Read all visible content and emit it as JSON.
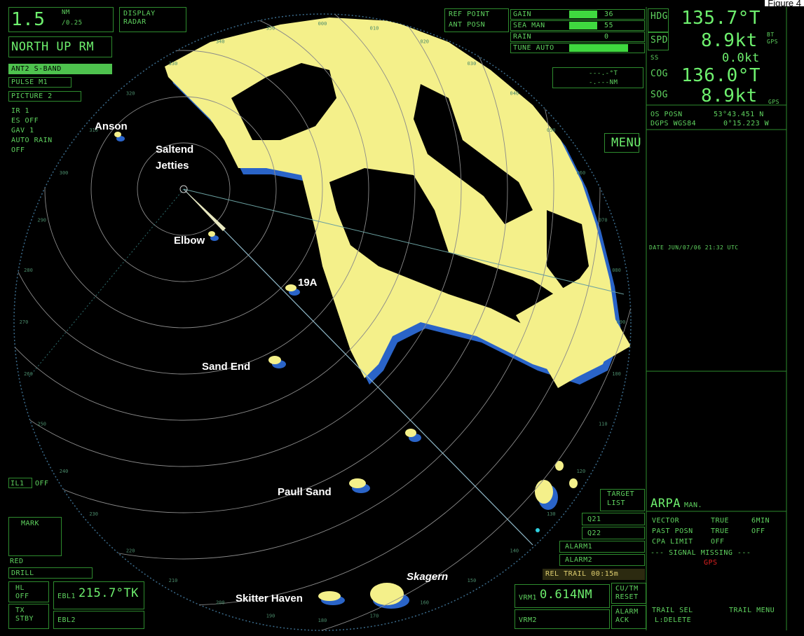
{
  "figure_label": "Figure 4",
  "display": {
    "range": "1.5",
    "range_unit": "NM",
    "ring_interval": "/0.25",
    "mode_line1": "DISPLAY",
    "mode_line2": "RADAR",
    "orientation": "NORTH UP RM",
    "antenna": "ANT2 S-BAND",
    "pulse": "PULSE M1",
    "picture": "PICTURE 2",
    "settings": [
      "IR 1",
      "ES OFF",
      "GAV 1",
      "AUTO RAIN",
      "OFF"
    ]
  },
  "bottom_left": {
    "il": "IL1",
    "il_state": "OFF",
    "mark": "MARK",
    "mark_color": "RED",
    "drill": "DRILL",
    "hl": "HL",
    "hl_state": "OFF",
    "tx": "TX",
    "tx_state": "STBY",
    "ebl1": "EBL1",
    "ebl1_value": "215.7°TK",
    "ebl2": "EBL2"
  },
  "ref_point": {
    "line1": "REF POINT",
    "line2": "ANT POSN"
  },
  "controls": [
    {
      "label": "GAIN",
      "value": 36
    },
    {
      "label": "SEA MAN",
      "value": 55
    },
    {
      "label": "RAIN",
      "value": 0
    },
    {
      "label": "TUNE AUTO"
    }
  ],
  "cursor": {
    "bearing": "---.-°T",
    "range": "-.---NM"
  },
  "nav": {
    "hdg_label": "HDG",
    "hdg": "135.7°T",
    "spd_label": "SPD",
    "spd": "8.9kt",
    "spd_mode": "BT",
    "spd_source": "GPS",
    "ss_label": "SS",
    "ss": "0.0kt",
    "cog_label": "COG",
    "cog": "136.0°T",
    "sog_label": "SOG",
    "sog": "8.9kt",
    "sog_source": "GPS",
    "posn_label": "OS POSN",
    "lat": "53°43.451 N",
    "datum": "DGPS WGS84",
    "lon": "0°15.223 W",
    "menu": "MENU",
    "date": "DATE JUN/07/06 21:32 UTC"
  },
  "targets": {
    "list_line1": "TARGET",
    "list_line2": "LIST",
    "arpa": "ARPA",
    "arpa_mode": "MAN.",
    "rows": [
      [
        "VECTOR",
        "TRUE",
        "6MIN"
      ],
      [
        "PAST POSN",
        "TRUE",
        "OFF"
      ],
      [
        "CPA LIMIT",
        "OFF"
      ]
    ],
    "signal_missing": "--- SIGNAL MISSING ---",
    "signal_source": "GPS",
    "q21": "Q21",
    "q22": "Q22",
    "alarm1": "ALARM1",
    "alarm2": "ALARM2",
    "trail": "REL TRAIL 00:15m",
    "vrm1": "VRM1",
    "vrm1_value": "0.614NM",
    "vrm2": "VRM2",
    "cutm_line1": "CU/TM",
    "cutm_line2": "RESET",
    "ack_line1": "ALARM",
    "ack_line2": "ACK",
    "trail_sel_line1": "TRAIL SEL",
    "trail_sel_line2": "L:DELETE",
    "trail_menu": "TRAIL MENU"
  },
  "bearing_scale": [
    "000",
    "010",
    "020",
    "030",
    "040",
    "050",
    "060",
    "070",
    "080",
    "090",
    "100",
    "110",
    "120",
    "130",
    "140",
    "150",
    "160",
    "170",
    "180",
    "190",
    "200",
    "210",
    "220",
    "230",
    "240",
    "250",
    "260",
    "270",
    "280",
    "290",
    "300",
    "310",
    "320",
    "330",
    "340",
    "350"
  ],
  "annotations": [
    "Anson",
    "Saltend",
    "Jetties",
    "Elbow",
    "19A",
    "Sand End",
    "Paull Sand",
    "Skitter Haven",
    "Skagern"
  ]
}
